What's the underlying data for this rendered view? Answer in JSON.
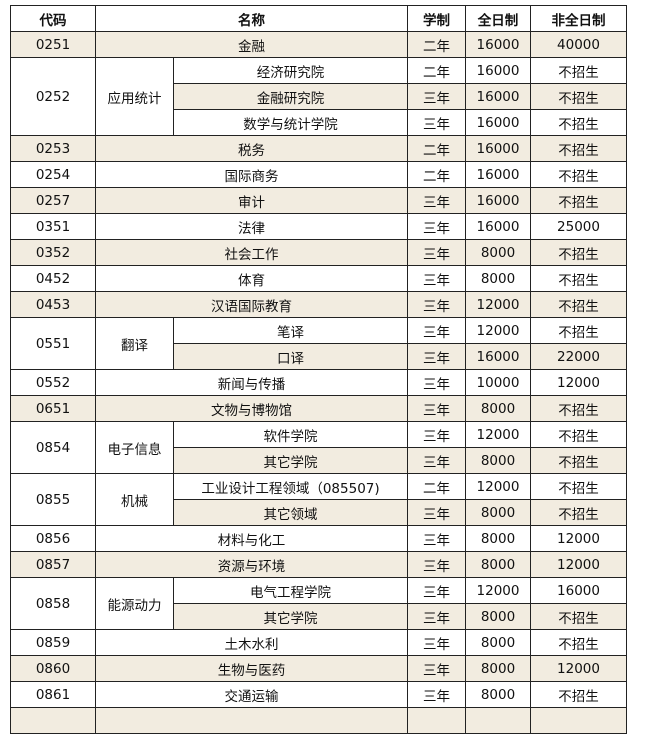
{
  "header": {
    "code": "代码",
    "name": "名称",
    "duration": "学制",
    "fulltime": "全日制",
    "parttime": "非全日制"
  },
  "colors": {
    "shaded_row": "#f2ece0",
    "border": "#222222"
  },
  "rows": [
    {
      "code": "0251",
      "items": [
        {
          "name": "金融",
          "duration": "二年",
          "fulltime": "16000",
          "parttime": "40000"
        }
      ]
    },
    {
      "code": "0252",
      "group": "应用统计",
      "items": [
        {
          "name": "经济研究院",
          "duration": "二年",
          "fulltime": "16000",
          "parttime": "不招生"
        },
        {
          "name": "金融研究院",
          "duration": "三年",
          "fulltime": "16000",
          "parttime": "不招生"
        },
        {
          "name": "数学与统计学院",
          "duration": "三年",
          "fulltime": "16000",
          "parttime": "不招生"
        }
      ]
    },
    {
      "code": "0253",
      "items": [
        {
          "name": "税务",
          "duration": "二年",
          "fulltime": "16000",
          "parttime": "不招生"
        }
      ]
    },
    {
      "code": "0254",
      "items": [
        {
          "name": "国际商务",
          "duration": "二年",
          "fulltime": "16000",
          "parttime": "不招生"
        }
      ]
    },
    {
      "code": "0257",
      "items": [
        {
          "name": "审计",
          "duration": "三年",
          "fulltime": "16000",
          "parttime": "不招生"
        }
      ]
    },
    {
      "code": "0351",
      "items": [
        {
          "name": "法律",
          "duration": "三年",
          "fulltime": "16000",
          "parttime": "25000"
        }
      ]
    },
    {
      "code": "0352",
      "items": [
        {
          "name": "社会工作",
          "duration": "三年",
          "fulltime": "8000",
          "parttime": "不招生"
        }
      ]
    },
    {
      "code": "0452",
      "items": [
        {
          "name": "体育",
          "duration": "三年",
          "fulltime": "8000",
          "parttime": "不招生"
        }
      ]
    },
    {
      "code": "0453",
      "items": [
        {
          "name": "汉语国际教育",
          "duration": "三年",
          "fulltime": "12000",
          "parttime": "不招生"
        }
      ]
    },
    {
      "code": "0551",
      "group": "翻译",
      "items": [
        {
          "name": "笔译",
          "duration": "三年",
          "fulltime": "12000",
          "parttime": "不招生"
        },
        {
          "name": "口译",
          "duration": "三年",
          "fulltime": "16000",
          "parttime": "22000"
        }
      ]
    },
    {
      "code": "0552",
      "items": [
        {
          "name": "新闻与传播",
          "duration": "三年",
          "fulltime": "10000",
          "parttime": "12000"
        }
      ]
    },
    {
      "code": "0651",
      "items": [
        {
          "name": "文物与博物馆",
          "duration": "三年",
          "fulltime": "8000",
          "parttime": "不招生"
        }
      ]
    },
    {
      "code": "0854",
      "group": "电子信息",
      "items": [
        {
          "name": "软件学院",
          "duration": "三年",
          "fulltime": "12000",
          "parttime": "不招生"
        },
        {
          "name": "其它学院",
          "duration": "三年",
          "fulltime": "8000",
          "parttime": "不招生"
        }
      ]
    },
    {
      "code": "0855",
      "group": "机械",
      "items": [
        {
          "name": "工业设计工程领域（085507)",
          "duration": "二年",
          "fulltime": "12000",
          "parttime": "不招生"
        },
        {
          "name": "其它领域",
          "duration": "三年",
          "fulltime": "8000",
          "parttime": "不招生"
        }
      ]
    },
    {
      "code": "0856",
      "items": [
        {
          "name": "材料与化工",
          "duration": "三年",
          "fulltime": "8000",
          "parttime": "12000"
        }
      ]
    },
    {
      "code": "0857",
      "items": [
        {
          "name": "资源与环境",
          "duration": "三年",
          "fulltime": "8000",
          "parttime": "12000"
        }
      ]
    },
    {
      "code": "0858",
      "group": "能源动力",
      "items": [
        {
          "name": "电气工程学院",
          "duration": "三年",
          "fulltime": "12000",
          "parttime": "16000"
        },
        {
          "name": "其它学院",
          "duration": "三年",
          "fulltime": "8000",
          "parttime": "不招生"
        }
      ]
    },
    {
      "code": "0859",
      "items": [
        {
          "name": "土木水利",
          "duration": "三年",
          "fulltime": "8000",
          "parttime": "不招生"
        }
      ]
    },
    {
      "code": "0860",
      "items": [
        {
          "name": "生物与医药",
          "duration": "三年",
          "fulltime": "8000",
          "parttime": "12000"
        }
      ]
    },
    {
      "code": "0861",
      "items": [
        {
          "name": "交通运输",
          "duration": "三年",
          "fulltime": "8000",
          "parttime": "不招生"
        }
      ]
    }
  ]
}
